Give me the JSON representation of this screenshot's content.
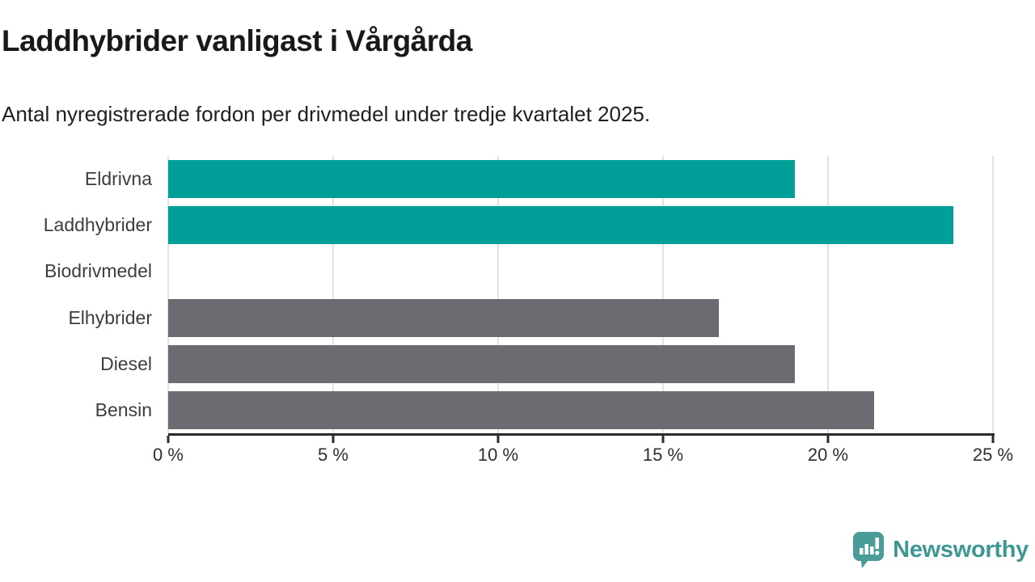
{
  "title": "Laddhybrider vanligast i Vårgårda",
  "subtitle": "Antal nyregistrerade fordon per drivmedel under tredje kvartalet 2025.",
  "chart_data": {
    "type": "bar",
    "orientation": "horizontal",
    "categories": [
      "Eldrivna",
      "Laddhybrider",
      "Biodrivmedel",
      "Elhybrider",
      "Diesel",
      "Bensin"
    ],
    "values": [
      19.0,
      23.8,
      0.0,
      16.7,
      19.0,
      21.4
    ],
    "unit": "%",
    "xlim": [
      0,
      25
    ],
    "x_ticks": [
      0,
      5,
      10,
      15,
      20,
      25
    ],
    "x_tick_labels": [
      "0 %",
      "5 %",
      "10 %",
      "15 %",
      "20 %",
      "25 %"
    ],
    "bar_colors": [
      "#00a099",
      "#00a099",
      "#6c6b71",
      "#6c6b71",
      "#6c6b71",
      "#6c6b71"
    ],
    "grid": true,
    "legend": false
  },
  "colors": {
    "highlight": "#00a099",
    "neutral": "#6c6b71",
    "gridline": "#e3e3e3",
    "axis": "#2b2b2b",
    "brand_teal": "#3f9793"
  },
  "branding": {
    "name": "Newsworthy",
    "icon": "bar-chart-speech-bubble-icon"
  }
}
